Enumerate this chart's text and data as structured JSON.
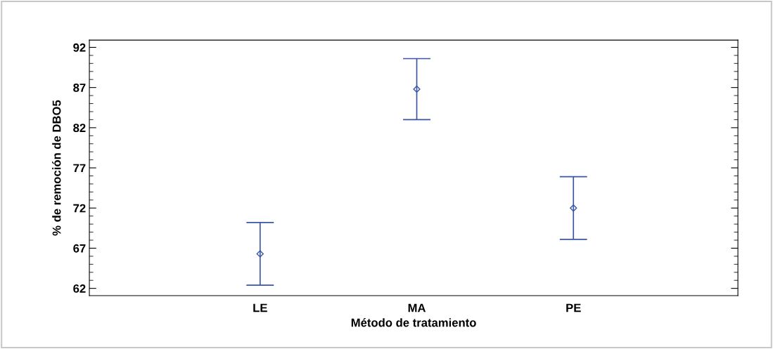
{
  "chart_data": {
    "type": "scatter",
    "xlabel": "Método de tratamiento",
    "ylabel": "% de remoción de DBO5",
    "categories": [
      "LE",
      "MA",
      "PE"
    ],
    "series": [
      {
        "color": "#3a55a8",
        "values": [
          66.3,
          86.8,
          72.0
        ],
        "errors": [
          3.9,
          3.8,
          3.9
        ]
      }
    ],
    "marker": "diamond",
    "ylim": [
      61.1,
      92.9
    ],
    "yticks": [
      62,
      67,
      72,
      77,
      82,
      87,
      92
    ],
    "grid": false,
    "legend": false
  }
}
